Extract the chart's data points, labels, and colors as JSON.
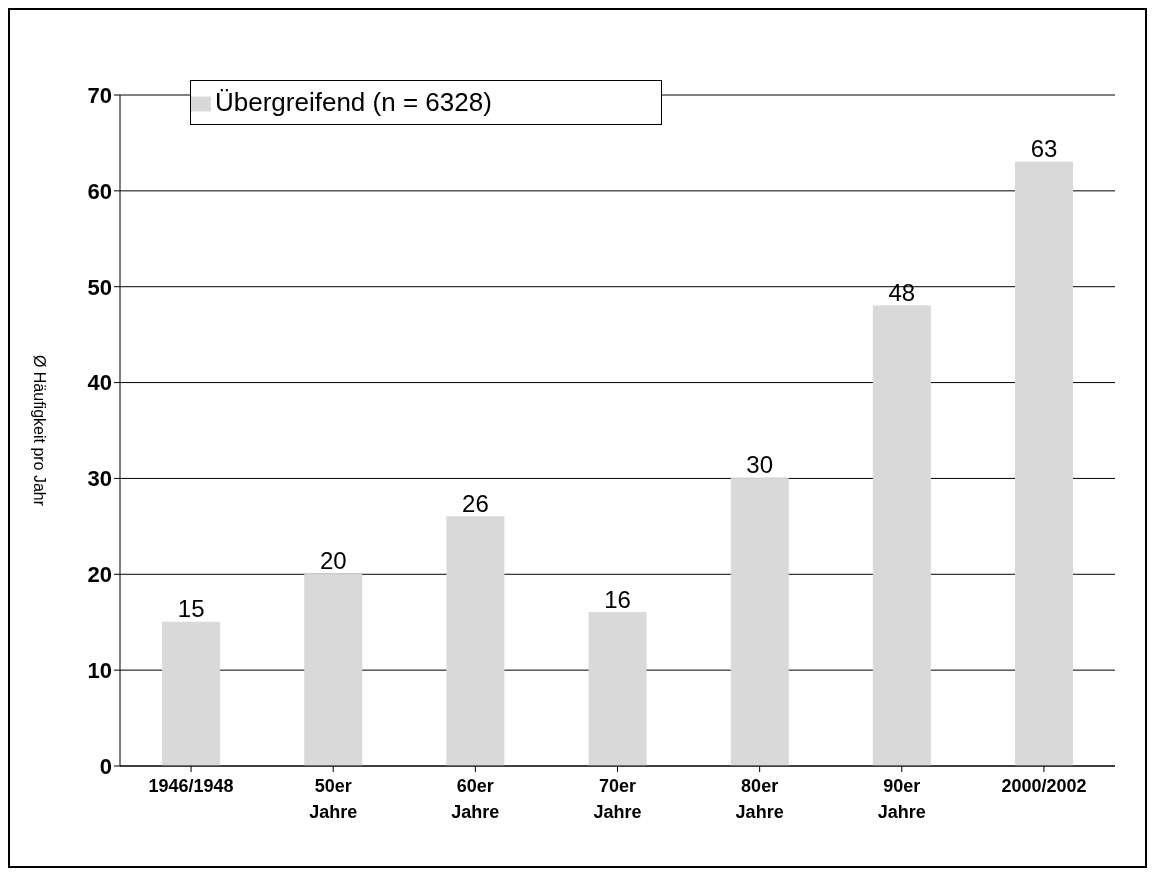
{
  "chart_data": {
    "type": "bar",
    "ylabel": "Ø Häufigkeit pro Jahr",
    "categories": [
      "1946/1948",
      "50er Jahre",
      "60er Jahre",
      "70er Jahre",
      "80er Jahre",
      "90er Jahre",
      "2000/2002"
    ],
    "series": [
      {
        "name": "Übergreifend (n = 6328)",
        "color": "#d9d9d9",
        "values": [
          15,
          20,
          26,
          16,
          30,
          48,
          63
        ]
      }
    ],
    "ylim": [
      0,
      70
    ],
    "yticks": [
      0,
      10,
      20,
      30,
      40,
      50,
      60,
      70
    ],
    "grid": "y",
    "legend": "top left",
    "data_labels": true
  }
}
